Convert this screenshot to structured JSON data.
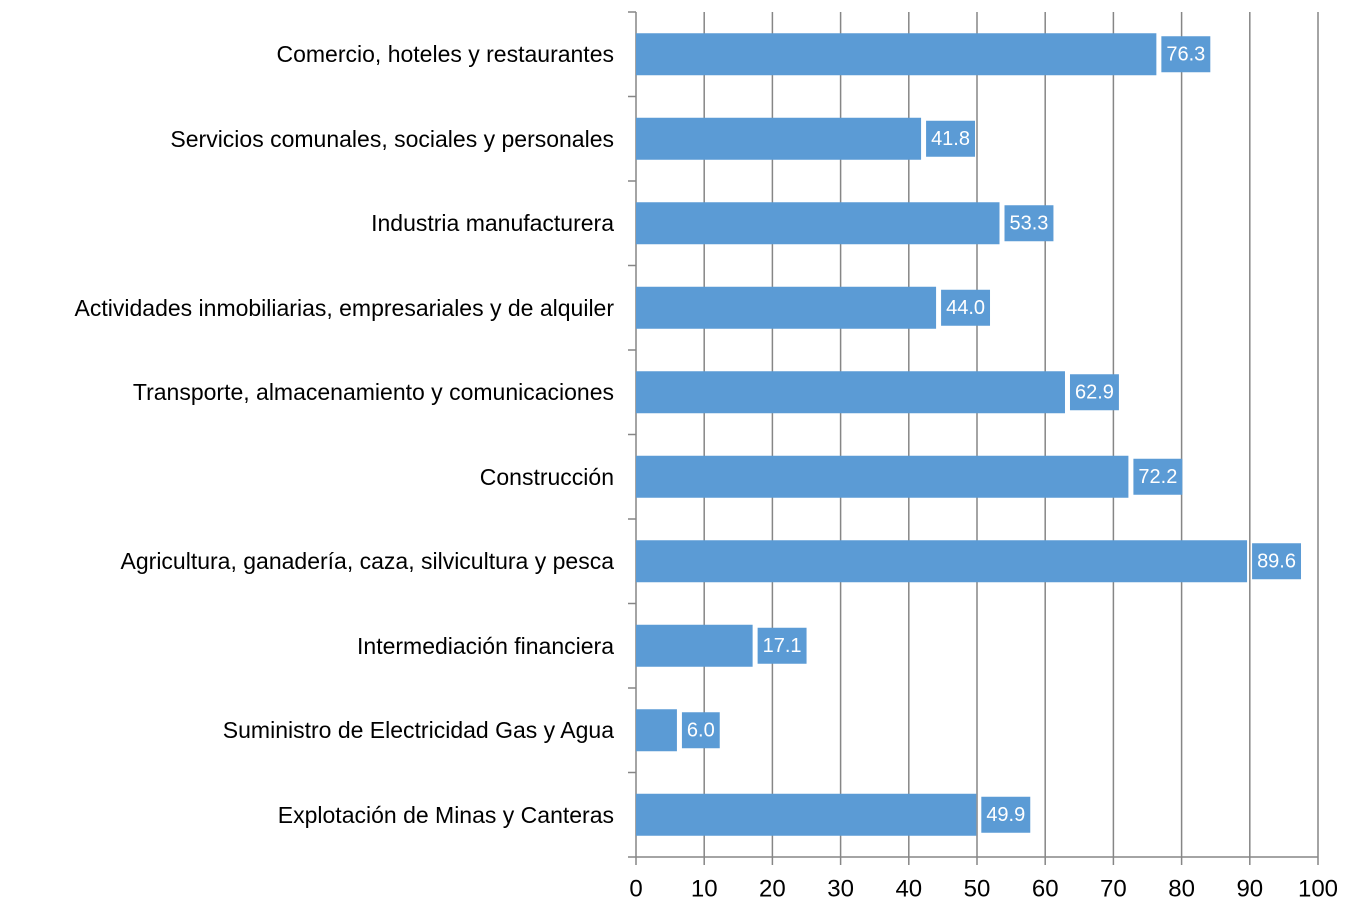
{
  "chart_data": {
    "type": "barh",
    "categories": [
      "Comercio, hoteles y restaurantes",
      "Servicios comunales, sociales y personales",
      "Industria manufacturera",
      "Actividades inmobiliarias, empresariales y de alquiler",
      "Transporte, almacenamiento y comunicaciones",
      "Construcción",
      "Agricultura, ganadería, caza, silvicultura y pesca",
      "Intermediación financiera",
      "Suministro de Electricidad Gas y Agua",
      "Explotación de Minas y Canteras"
    ],
    "values": [
      76.3,
      41.8,
      53.3,
      44.0,
      62.9,
      72.2,
      89.6,
      17.1,
      6.0,
      49.9
    ],
    "value_labels": [
      "76.3",
      "41.8",
      "53.3",
      "44.0",
      "62.9",
      "72.2",
      "89.6",
      "17.1",
      "6.0",
      "49.9"
    ],
    "color": "#5b9bd5",
    "xlim": [
      0,
      100
    ],
    "xticks": [
      0,
      10,
      20,
      30,
      40,
      50,
      60,
      70,
      80,
      90,
      100
    ],
    "grid": true
  }
}
